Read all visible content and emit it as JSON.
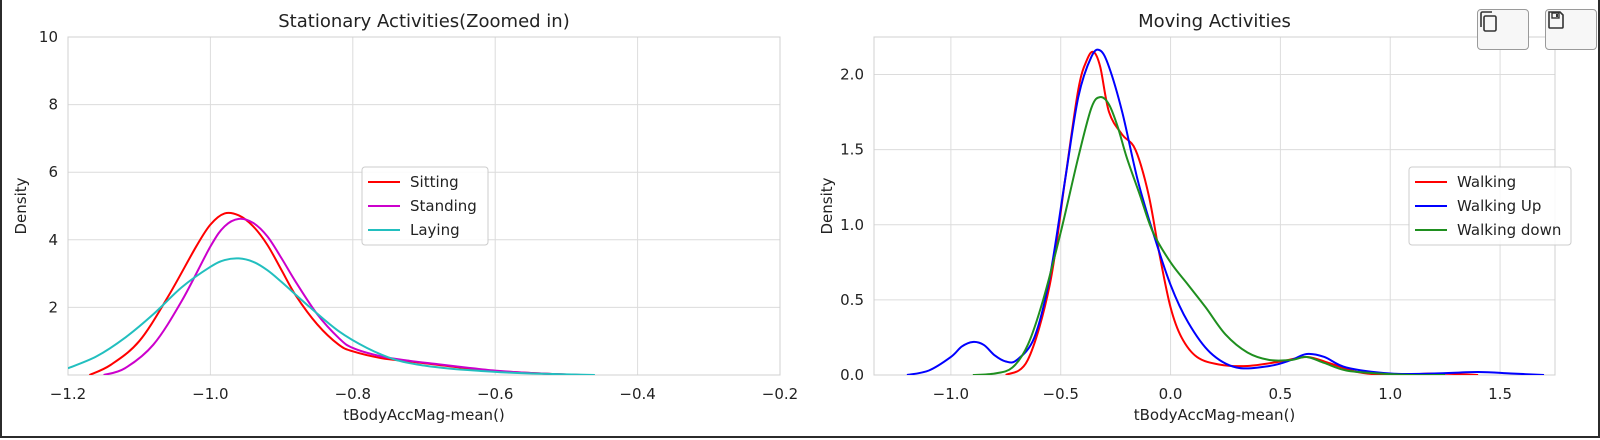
{
  "toolbar": {
    "copy_icon": "copy-icon",
    "save_icon": "floppy-disk-icon"
  },
  "chart_data": [
    {
      "type": "line",
      "title": "Stationary Activities(Zoomed in)",
      "xlabel": "tBodyAccMag-mean()",
      "ylabel": "Density",
      "xlim": [
        -1.2,
        -0.2
      ],
      "ylim": [
        0,
        10
      ],
      "xticks": [
        -1.2,
        -1.0,
        -0.8,
        -0.6,
        -0.4,
        -0.2
      ],
      "xtick_labels": [
        "−1.2",
        "−1.0",
        "−0.8",
        "−0.6",
        "−0.4",
        "−0.2"
      ],
      "yticks": [
        2,
        4,
        6,
        8,
        10
      ],
      "ytick_labels": [
        "2",
        "4",
        "6",
        "8",
        "10"
      ],
      "grid": true,
      "legend_placement": "center",
      "series": [
        {
          "name": "Sitting",
          "color": "#ff0000",
          "x": [
            -1.17,
            -1.14,
            -1.1,
            -1.06,
            -1.02,
            -1.0,
            -0.98,
            -0.96,
            -0.94,
            -0.92,
            -0.9,
            -0.88,
            -0.85,
            -0.82,
            -0.8,
            -0.76,
            -0.72,
            -0.68,
            -0.64,
            -0.6,
            -0.56,
            -0.52,
            -0.48
          ],
          "y": [
            0.0,
            0.3,
            1.0,
            2.3,
            3.8,
            4.45,
            4.78,
            4.72,
            4.4,
            3.85,
            3.1,
            2.35,
            1.5,
            0.9,
            0.7,
            0.5,
            0.4,
            0.3,
            0.2,
            0.12,
            0.07,
            0.03,
            0.0
          ]
        },
        {
          "name": "Standing",
          "color": "#cc00cc",
          "x": [
            -1.15,
            -1.12,
            -1.08,
            -1.04,
            -1.0,
            -0.98,
            -0.96,
            -0.94,
            -0.92,
            -0.9,
            -0.88,
            -0.85,
            -0.82,
            -0.8,
            -0.76,
            -0.72,
            -0.68,
            -0.64,
            -0.6,
            -0.56,
            -0.52,
            -0.48
          ],
          "y": [
            0.0,
            0.2,
            0.9,
            2.2,
            3.8,
            4.4,
            4.62,
            4.5,
            4.1,
            3.45,
            2.75,
            1.8,
            1.1,
            0.8,
            0.55,
            0.42,
            0.32,
            0.22,
            0.13,
            0.07,
            0.03,
            0.0
          ]
        },
        {
          "name": "Laying",
          "color": "#22bfbf",
          "x": [
            -1.2,
            -1.16,
            -1.12,
            -1.08,
            -1.04,
            -1.0,
            -0.98,
            -0.96,
            -0.94,
            -0.92,
            -0.9,
            -0.86,
            -0.82,
            -0.78,
            -0.74,
            -0.7,
            -0.66,
            -0.62,
            -0.58,
            -0.54,
            -0.5,
            -0.46
          ],
          "y": [
            0.2,
            0.55,
            1.1,
            1.8,
            2.6,
            3.2,
            3.4,
            3.45,
            3.35,
            3.1,
            2.75,
            2.0,
            1.3,
            0.8,
            0.45,
            0.28,
            0.18,
            0.12,
            0.07,
            0.04,
            0.02,
            0.0
          ]
        }
      ]
    },
    {
      "type": "line",
      "title": "Moving Activities",
      "xlabel": "tBodyAccMag-mean()",
      "ylabel": "Density",
      "xlim": [
        -1.35,
        1.75
      ],
      "ylim": [
        0,
        2.25
      ],
      "xticks": [
        -1.0,
        -0.5,
        0.0,
        0.5,
        1.0,
        1.5
      ],
      "xtick_labels": [
        "−1.0",
        "−0.5",
        "0.0",
        "0.5",
        "1.0",
        "1.5"
      ],
      "yticks": [
        0.0,
        0.5,
        1.0,
        1.5,
        2.0
      ],
      "ytick_labels": [
        "0.0",
        "0.5",
        "1.0",
        "1.5",
        "2.0"
      ],
      "grid": true,
      "legend_placement": "right",
      "series": [
        {
          "name": "Walking",
          "color": "#ff0000",
          "x": [
            -0.75,
            -0.65,
            -0.55,
            -0.48,
            -0.42,
            -0.38,
            -0.35,
            -0.32,
            -0.28,
            -0.22,
            -0.16,
            -0.1,
            -0.05,
            0.0,
            0.05,
            0.12,
            0.22,
            0.35,
            0.5,
            0.62,
            0.72,
            0.85,
            1.0,
            1.2,
            1.4
          ],
          "y": [
            0.0,
            0.1,
            0.6,
            1.3,
            1.9,
            2.1,
            2.15,
            2.05,
            1.75,
            1.6,
            1.5,
            1.2,
            0.8,
            0.45,
            0.25,
            0.12,
            0.07,
            0.06,
            0.09,
            0.12,
            0.08,
            0.02,
            0.0,
            0.01,
            0.0
          ]
        },
        {
          "name": "Walking Up",
          "color": "#0000ff",
          "x": [
            -1.2,
            -1.1,
            -1.0,
            -0.95,
            -0.9,
            -0.85,
            -0.8,
            -0.75,
            -0.7,
            -0.62,
            -0.55,
            -0.48,
            -0.42,
            -0.36,
            -0.32,
            -0.28,
            -0.22,
            -0.15,
            -0.08,
            0.0,
            0.08,
            0.18,
            0.3,
            0.45,
            0.55,
            0.62,
            0.7,
            0.8,
            1.0,
            1.2,
            1.4,
            1.55,
            1.7
          ],
          "y": [
            0.0,
            0.03,
            0.12,
            0.19,
            0.22,
            0.2,
            0.13,
            0.09,
            0.1,
            0.25,
            0.65,
            1.3,
            1.85,
            2.12,
            2.16,
            2.05,
            1.75,
            1.3,
            0.95,
            0.6,
            0.35,
            0.15,
            0.05,
            0.06,
            0.1,
            0.14,
            0.12,
            0.05,
            0.01,
            0.01,
            0.02,
            0.01,
            0.0
          ]
        },
        {
          "name": "Walking down",
          "color": "#1f8f1f",
          "x": [
            -0.9,
            -0.8,
            -0.72,
            -0.65,
            -0.58,
            -0.5,
            -0.42,
            -0.36,
            -0.32,
            -0.28,
            -0.24,
            -0.2,
            -0.14,
            -0.08,
            0.0,
            0.08,
            0.16,
            0.25,
            0.35,
            0.45,
            0.55,
            0.62,
            0.7,
            0.8,
            0.95,
            1.1,
            1.25
          ],
          "y": [
            0.0,
            0.01,
            0.05,
            0.2,
            0.5,
            0.95,
            1.45,
            1.78,
            1.85,
            1.8,
            1.65,
            1.45,
            1.2,
            0.95,
            0.75,
            0.6,
            0.45,
            0.27,
            0.15,
            0.1,
            0.1,
            0.12,
            0.08,
            0.03,
            0.01,
            0.0,
            0.0
          ]
        }
      ]
    }
  ]
}
